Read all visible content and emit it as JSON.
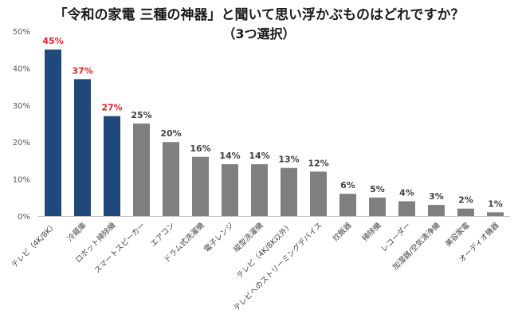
{
  "chart_data": {
    "type": "bar",
    "title": "「令和の家電 三種の神器」と聞いて思い浮かぶものはどれですか？",
    "subtitle": "（3つ選択）",
    "categories": [
      "テレビ（4K/8K）",
      "冷蔵庫",
      "ロボット掃除機",
      "スマートスピーカー",
      "エアコン",
      "ドラム式洗濯機",
      "電子レンジ",
      "縦型洗濯機",
      "テレビ（4K/8K以外）",
      "テレビへのストリーミングデバイス",
      "炊飯器",
      "掃除機",
      "レコーダー",
      "加湿器/空気清浄機",
      "美容家電",
      "オーディオ機器"
    ],
    "values": [
      45,
      37,
      27,
      25,
      20,
      16,
      14,
      14,
      13,
      12,
      6,
      5,
      4,
      3,
      2,
      1
    ],
    "value_labels": [
      "45%",
      "37%",
      "27%",
      "25%",
      "20%",
      "16%",
      "14%",
      "14%",
      "13%",
      "12%",
      "6%",
      "5%",
      "4%",
      "3%",
      "2%",
      "1%"
    ],
    "highlight_top_n": 3,
    "ylim": [
      0,
      50
    ],
    "y_ticks": [
      0,
      10,
      20,
      30,
      40,
      50
    ],
    "y_tick_labels": [
      "0%",
      "10%",
      "20%",
      "30%",
      "40%",
      "50%"
    ],
    "grid": false,
    "colors": {
      "highlight_bar": "#1f497d",
      "other_bar": "#7f7f7f",
      "highlight_label": "#e0242b",
      "other_label": "#404040",
      "axis": "#bfbfbf",
      "tick": "#595959"
    }
  }
}
